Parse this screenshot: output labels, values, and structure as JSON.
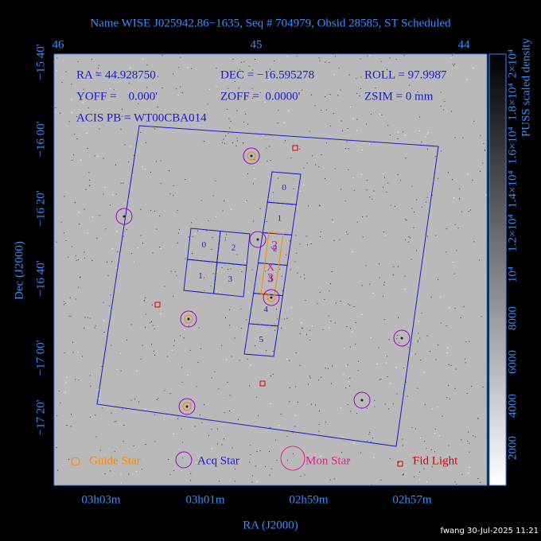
{
  "title": "Name WISE J025942.86−1635, Seq # 704979, Obsid 28585, ST Scheduled",
  "top_axis": {
    "labels": [
      "46",
      "45",
      "44"
    ]
  },
  "left_axis": {
    "labels": [
      "−15 40'",
      "−16 00'",
      "−16 20'",
      "−16 40'",
      "−17 00'",
      "−17 20'"
    ],
    "title": "Dec (J2000)"
  },
  "bottom_axis": {
    "labels": [
      "03h03m",
      "03h01m",
      "02h59m",
      "02h57m"
    ],
    "title": "RA (J2000)"
  },
  "info": [
    [
      "RA = 44.928750",
      "DEC = −16.595278",
      "ROLL = 97.9987"
    ],
    [
      "YOFF =    0.000'",
      "ZOFF =  0.0000'",
      "ZSIM = 0 mm"
    ],
    [
      "ACIS PB = WT00CBA014"
    ]
  ],
  "acis_i_chips": [
    "0",
    "2",
    "1",
    "3"
  ],
  "acis_s_chips": [
    "0",
    "1",
    "2",
    "3",
    "4",
    "5"
  ],
  "target_marks": [
    "2",
    "3",
    "X"
  ],
  "colorbar": {
    "title": "PUSS scaled density",
    "labels": [
      "2×10⁴",
      "1.8×10⁴",
      "1.6×10⁴",
      "1.4×10⁴",
      "1.2×10⁴",
      "10⁴",
      "8000",
      "6000",
      "4000",
      "2000"
    ]
  },
  "legend": [
    "Guide Star",
    "Acq Star",
    "Mon Star",
    "Fid Light"
  ],
  "footer": "fwang 30-Jul-2025 11:21"
}
